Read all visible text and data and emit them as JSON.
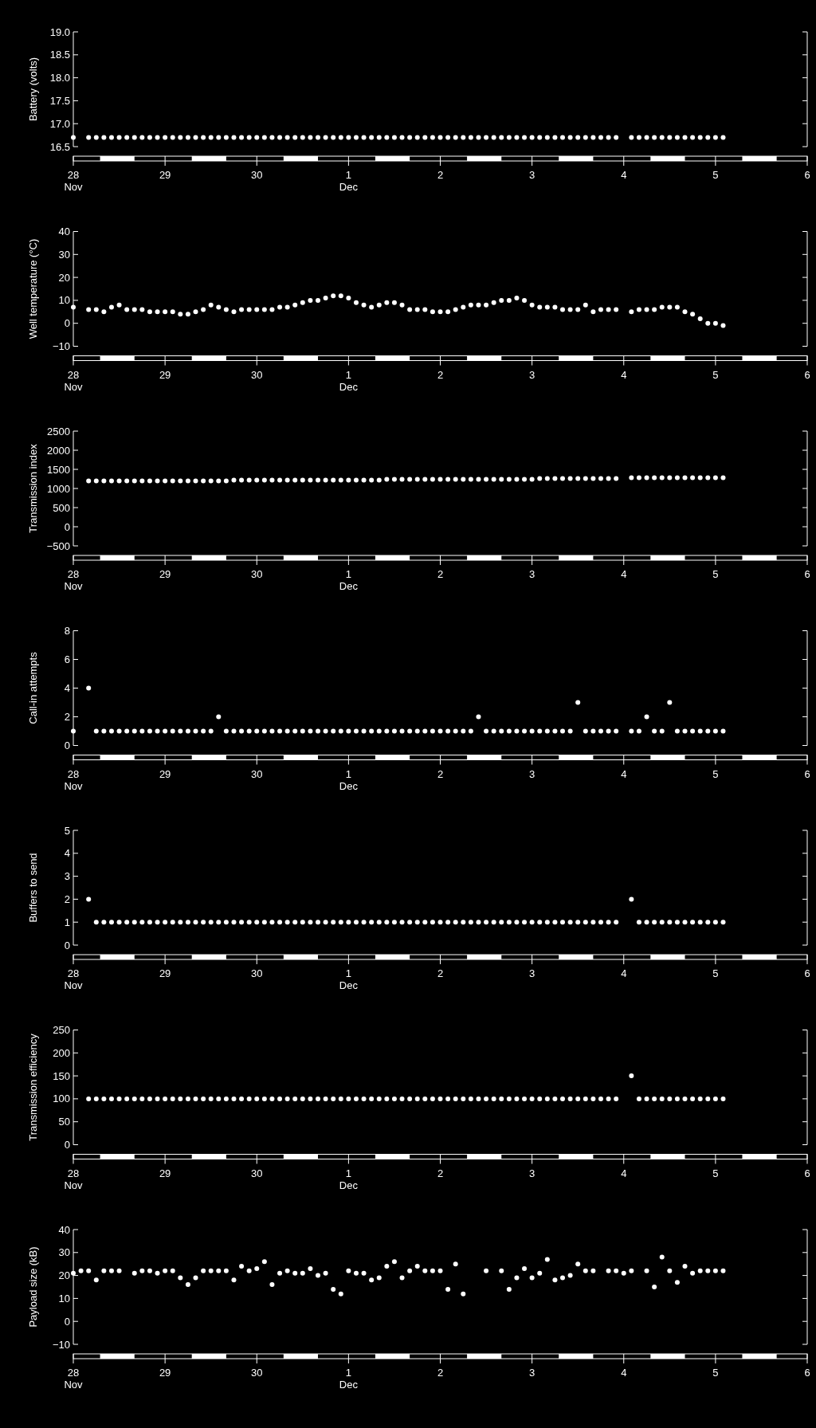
{
  "chart_data": [
    {
      "type": "scatter",
      "ylabel": "Battery (volts)",
      "marker": "circle",
      "xlim": [
        "--11-28",
        "--12-06"
      ],
      "ylim": [
        16.5,
        19.0
      ],
      "xticks": [
        {
          "value": "--11-28",
          "label": "28\nNov"
        },
        {
          "value": "--11-29",
          "label": "29"
        },
        {
          "value": "--11-30",
          "label": "30"
        },
        {
          "value": "--12-01",
          "label": "1\nDec"
        },
        {
          "value": "--12-02",
          "label": "2"
        },
        {
          "value": "--12-03",
          "label": "3"
        },
        {
          "value": "--12-04",
          "label": "4"
        },
        {
          "value": "--12-05",
          "label": "5"
        },
        {
          "value": "--12-06",
          "label": "6"
        }
      ],
      "yticks": [
        16.5,
        {
          "value": 17,
          "label": "17.0"
        },
        17.5,
        {
          "value": 18,
          "label": "18.0"
        },
        18.5,
        {
          "value": 19,
          "label": "19.0"
        }
      ],
      "x": [
        "--11-28T00:00",
        "--11-28T04:00",
        "--11-28T06:00",
        "--11-28T08:00",
        "--11-28T10:00",
        "--11-28T12:00",
        "--11-28T14:00",
        "--11-28T16:00",
        "--11-28T18:00",
        "--11-28T20:00",
        "--11-28T22:00",
        "--11-29T00:00",
        "--11-29T02:00",
        "--11-29T04:00",
        "--11-29T06:00",
        "--11-29T08:00",
        "--11-29T10:00",
        "--11-29T12:00",
        "--11-29T14:00",
        "--11-29T16:00",
        "--11-29T18:00",
        "--11-29T20:00",
        "--11-29T22:00",
        "--11-30T00:00",
        "--11-30T02:00",
        "--11-30T04:00",
        "--11-30T06:00",
        "--11-30T08:00",
        "--11-30T10:00",
        "--11-30T12:00",
        "--11-30T14:00",
        "--11-30T16:00",
        "--11-30T18:00",
        "--11-30T20:00",
        "--11-30T22:00",
        "--12-01T00:00",
        "--12-01T02:00",
        "--12-01T04:00",
        "--12-01T06:00",
        "--12-01T08:00",
        "--12-01T10:00",
        "--12-01T12:00",
        "--12-01T14:00",
        "--12-01T16:00",
        "--12-01T18:00",
        "--12-01T20:00",
        "--12-01T22:00",
        "--12-02T00:00",
        "--12-02T02:00",
        "--12-02T04:00",
        "--12-02T06:00",
        "--12-02T08:00",
        "--12-02T10:00",
        "--12-02T12:00",
        "--12-02T14:00",
        "--12-02T16:00",
        "--12-02T18:00",
        "--12-02T20:00",
        "--12-02T22:00",
        "--12-03T00:00",
        "--12-03T02:00",
        "--12-03T04:00",
        "--12-03T06:00",
        "--12-03T08:00",
        "--12-03T10:00",
        "--12-03T12:00",
        "--12-03T14:00",
        "--12-03T16:00",
        "--12-03T18:00",
        "--12-03T20:00",
        "--12-03T22:00",
        "--12-04T02:00",
        "--12-04T04:00",
        "--12-04T06:00",
        "--12-04T08:00",
        "--12-04T10:00",
        "--12-04T12:00",
        "--12-04T14:00",
        "--12-04T16:00",
        "--12-04T18:00",
        "--12-04T20:00",
        "--12-04T22:00",
        "--12-05T00:00",
        "--12-05T02:00"
      ],
      "series": [
        {
          "color": "#ffffff",
          "values": [
            16.7,
            16.7,
            16.7,
            16.7,
            16.7,
            16.7,
            16.7,
            16.7,
            16.7,
            16.7,
            16.7,
            16.7,
            16.7,
            16.7,
            16.7,
            16.7,
            16.7,
            16.7,
            16.7,
            16.7,
            16.7,
            16.7,
            16.7,
            16.7,
            16.7,
            16.7,
            16.7,
            16.7,
            16.7,
            16.7,
            16.7,
            16.7,
            16.7,
            16.7,
            16.7,
            16.7,
            16.7,
            16.7,
            16.7,
            16.7,
            16.7,
            16.7,
            16.7,
            16.7,
            16.7,
            16.7,
            16.7,
            16.7,
            16.7,
            16.7,
            16.7,
            16.7,
            16.7,
            16.7,
            16.7,
            16.7,
            16.7,
            16.7,
            16.7,
            16.7,
            16.7,
            16.7,
            16.7,
            16.7,
            16.7,
            16.7,
            16.7,
            16.7,
            16.7,
            16.7,
            16.7,
            16.7,
            16.7,
            16.7,
            16.7,
            16.7,
            16.7,
            16.7,
            16.7,
            16.7,
            16.7,
            16.7,
            16.7,
            16.7
          ]
        }
      ]
    },
    {
      "type": "scatter",
      "ylabel": "Well temperature (°C)",
      "marker": "circle",
      "xlim": [
        "--11-28",
        "--12-06"
      ],
      "ylim": [
        -10,
        40
      ],
      "xticks": [
        {
          "value": "--11-28",
          "label": "28\nNov"
        },
        {
          "value": "--11-29",
          "label": "29"
        },
        {
          "value": "--11-30",
          "label": "30"
        },
        {
          "value": "--12-01",
          "label": "1\nDec"
        },
        {
          "value": "--12-02",
          "label": "2"
        },
        {
          "value": "--12-03",
          "label": "3"
        },
        {
          "value": "--12-04",
          "label": "4"
        },
        {
          "value": "--12-05",
          "label": "5"
        },
        {
          "value": "--12-06",
          "label": "6"
        }
      ],
      "yticks": [
        {
          "value": -10,
          "label": "−10"
        },
        0,
        10,
        20,
        30,
        40
      ],
      "x": [
        "--11-28T00:00",
        "--11-28T04:00",
        "--11-28T06:00",
        "--11-28T08:00",
        "--11-28T10:00",
        "--11-28T12:00",
        "--11-28T14:00",
        "--11-28T16:00",
        "--11-28T18:00",
        "--11-28T20:00",
        "--11-28T22:00",
        "--11-29T00:00",
        "--11-29T02:00",
        "--11-29T04:00",
        "--11-29T06:00",
        "--11-29T08:00",
        "--11-29T10:00",
        "--11-29T12:00",
        "--11-29T14:00",
        "--11-29T16:00",
        "--11-29T18:00",
        "--11-29T20:00",
        "--11-29T22:00",
        "--11-30T00:00",
        "--11-30T02:00",
        "--11-30T04:00",
        "--11-30T06:00",
        "--11-30T08:00",
        "--11-30T10:00",
        "--11-30T12:00",
        "--11-30T14:00",
        "--11-30T16:00",
        "--11-30T18:00",
        "--11-30T20:00",
        "--11-30T22:00",
        "--12-01T00:00",
        "--12-01T02:00",
        "--12-01T04:00",
        "--12-01T06:00",
        "--12-01T08:00",
        "--12-01T10:00",
        "--12-01T12:00",
        "--12-01T14:00",
        "--12-01T16:00",
        "--12-01T18:00",
        "--12-01T20:00",
        "--12-01T22:00",
        "--12-02T00:00",
        "--12-02T02:00",
        "--12-02T04:00",
        "--12-02T06:00",
        "--12-02T08:00",
        "--12-02T10:00",
        "--12-02T12:00",
        "--12-02T14:00",
        "--12-02T16:00",
        "--12-02T18:00",
        "--12-02T20:00",
        "--12-02T22:00",
        "--12-03T00:00",
        "--12-03T02:00",
        "--12-03T04:00",
        "--12-03T06:00",
        "--12-03T08:00",
        "--12-03T10:00",
        "--12-03T12:00",
        "--12-03T14:00",
        "--12-03T16:00",
        "--12-03T18:00",
        "--12-03T20:00",
        "--12-03T22:00",
        "--12-04T02:00",
        "--12-04T04:00",
        "--12-04T06:00",
        "--12-04T08:00",
        "--12-04T10:00",
        "--12-04T12:00",
        "--12-04T14:00",
        "--12-04T16:00",
        "--12-04T18:00",
        "--12-04T20:00",
        "--12-04T22:00",
        "--12-05T00:00",
        "--12-05T02:00"
      ],
      "series": [
        {
          "color": "#ffffff",
          "values": [
            7,
            6,
            6,
            5,
            7,
            8,
            6,
            6,
            6,
            5,
            5,
            5,
            5,
            4,
            4,
            5,
            6,
            8,
            7,
            6,
            5,
            6,
            6,
            6,
            6,
            6,
            7,
            7,
            8,
            9,
            10,
            10,
            11,
            12,
            12,
            11,
            9,
            8,
            7,
            8,
            9,
            9,
            8,
            6,
            6,
            6,
            5,
            5,
            5,
            6,
            7,
            8,
            8,
            8,
            9,
            10,
            10,
            11,
            10,
            8,
            7,
            7,
            7,
            6,
            6,
            6,
            8,
            5,
            6,
            6,
            6,
            5,
            6,
            6,
            6,
            7,
            7,
            7,
            5,
            4,
            2,
            0,
            0,
            -1
          ]
        }
      ]
    },
    {
      "type": "scatter",
      "ylabel": "Transmission index",
      "marker": "circle",
      "xlim": [
        "--11-28",
        "--12-06"
      ],
      "ylim": [
        -500,
        2500
      ],
      "xticks": [
        {
          "value": "--11-28",
          "label": "28\nNov"
        },
        {
          "value": "--11-29",
          "label": "29"
        },
        {
          "value": "--11-30",
          "label": "30"
        },
        {
          "value": "--12-01",
          "label": "1\nDec"
        },
        {
          "value": "--12-02",
          "label": "2"
        },
        {
          "value": "--12-03",
          "label": "3"
        },
        {
          "value": "--12-04",
          "label": "4"
        },
        {
          "value": "--12-05",
          "label": "5"
        },
        {
          "value": "--12-06",
          "label": "6"
        }
      ],
      "yticks": [
        {
          "value": -500,
          "label": "−500"
        },
        0,
        500,
        1000,
        1500,
        2000,
        2500
      ],
      "x": [
        "--11-28T04:00",
        "--11-28T06:00",
        "--11-28T08:00",
        "--11-28T10:00",
        "--11-28T12:00",
        "--11-28T14:00",
        "--11-28T16:00",
        "--11-28T18:00",
        "--11-28T20:00",
        "--11-28T22:00",
        "--11-29T00:00",
        "--11-29T02:00",
        "--11-29T04:00",
        "--11-29T06:00",
        "--11-29T08:00",
        "--11-29T10:00",
        "--11-29T12:00",
        "--11-29T14:00",
        "--11-29T16:00",
        "--11-29T18:00",
        "--11-29T20:00",
        "--11-29T22:00",
        "--11-30T00:00",
        "--11-30T02:00",
        "--11-30T04:00",
        "--11-30T06:00",
        "--11-30T08:00",
        "--11-30T10:00",
        "--11-30T12:00",
        "--11-30T14:00",
        "--11-30T16:00",
        "--11-30T18:00",
        "--11-30T20:00",
        "--11-30T22:00",
        "--12-01T00:00",
        "--12-01T02:00",
        "--12-01T04:00",
        "--12-01T06:00",
        "--12-01T08:00",
        "--12-01T10:00",
        "--12-01T12:00",
        "--12-01T14:00",
        "--12-01T16:00",
        "--12-01T18:00",
        "--12-01T20:00",
        "--12-01T22:00",
        "--12-02T00:00",
        "--12-02T02:00",
        "--12-02T04:00",
        "--12-02T06:00",
        "--12-02T08:00",
        "--12-02T10:00",
        "--12-02T12:00",
        "--12-02T14:00",
        "--12-02T16:00",
        "--12-02T18:00",
        "--12-02T20:00",
        "--12-02T22:00",
        "--12-03T00:00",
        "--12-03T02:00",
        "--12-03T04:00",
        "--12-03T06:00",
        "--12-03T08:00",
        "--12-03T10:00",
        "--12-03T12:00",
        "--12-03T14:00",
        "--12-03T16:00",
        "--12-03T18:00",
        "--12-03T20:00",
        "--12-03T22:00",
        "--12-04T02:00",
        "--12-04T04:00",
        "--12-04T06:00",
        "--12-04T08:00",
        "--12-04T10:00",
        "--12-04T12:00",
        "--12-04T14:00",
        "--12-04T16:00",
        "--12-04T18:00",
        "--12-04T20:00",
        "--12-04T22:00",
        "--12-05T00:00",
        "--12-05T02:00"
      ],
      "series": [
        {
          "color": "#ffffff",
          "values": [
            1200,
            1200,
            1200,
            1200,
            1200,
            1200,
            1200,
            1200,
            1200,
            1200,
            1200,
            1200,
            1200,
            1200,
            1200,
            1200,
            1200,
            1200,
            1200,
            1220,
            1220,
            1220,
            1220,
            1220,
            1220,
            1220,
            1220,
            1220,
            1220,
            1220,
            1220,
            1220,
            1220,
            1220,
            1220,
            1220,
            1220,
            1220,
            1220,
            1240,
            1240,
            1240,
            1240,
            1240,
            1240,
            1240,
            1240,
            1240,
            1240,
            1240,
            1240,
            1240,
            1240,
            1240,
            1240,
            1240,
            1240,
            1240,
            1240,
            1260,
            1260,
            1260,
            1260,
            1260,
            1260,
            1260,
            1260,
            1260,
            1260,
            1260,
            1280,
            1280,
            1280,
            1280,
            1280,
            1280,
            1280,
            1280,
            1280,
            1280,
            1280,
            1280,
            1280
          ]
        }
      ]
    },
    {
      "type": "scatter",
      "ylabel": "Call-in attempts",
      "marker": "circle",
      "xlim": [
        "--11-28",
        "--12-06"
      ],
      "ylim": [
        0,
        8
      ],
      "xticks": [
        {
          "value": "--11-28",
          "label": "28\nNov"
        },
        {
          "value": "--11-29",
          "label": "29"
        },
        {
          "value": "--11-30",
          "label": "30"
        },
        {
          "value": "--12-01",
          "label": "1\nDec"
        },
        {
          "value": "--12-02",
          "label": "2"
        },
        {
          "value": "--12-03",
          "label": "3"
        },
        {
          "value": "--12-04",
          "label": "4"
        },
        {
          "value": "--12-05",
          "label": "5"
        },
        {
          "value": "--12-06",
          "label": "6"
        }
      ],
      "yticks": [
        0,
        2,
        4,
        6,
        8
      ],
      "x": [
        "--11-28T00:00",
        "--11-28T04:00",
        "--11-28T06:00",
        "--11-28T08:00",
        "--11-28T10:00",
        "--11-28T12:00",
        "--11-28T14:00",
        "--11-28T16:00",
        "--11-28T18:00",
        "--11-28T20:00",
        "--11-28T22:00",
        "--11-29T00:00",
        "--11-29T02:00",
        "--11-29T04:00",
        "--11-29T06:00",
        "--11-29T08:00",
        "--11-29T10:00",
        "--11-29T12:00",
        "--11-29T14:00",
        "--11-29T16:00",
        "--11-29T18:00",
        "--11-29T20:00",
        "--11-29T22:00",
        "--11-30T00:00",
        "--11-30T02:00",
        "--11-30T04:00",
        "--11-30T06:00",
        "--11-30T08:00",
        "--11-30T10:00",
        "--11-30T12:00",
        "--11-30T14:00",
        "--11-30T16:00",
        "--11-30T18:00",
        "--11-30T20:00",
        "--11-30T22:00",
        "--12-01T00:00",
        "--12-01T02:00",
        "--12-01T04:00",
        "--12-01T06:00",
        "--12-01T08:00",
        "--12-01T10:00",
        "--12-01T12:00",
        "--12-01T14:00",
        "--12-01T16:00",
        "--12-01T18:00",
        "--12-01T20:00",
        "--12-01T22:00",
        "--12-02T00:00",
        "--12-02T02:00",
        "--12-02T04:00",
        "--12-02T06:00",
        "--12-02T08:00",
        "--12-02T10:00",
        "--12-02T12:00",
        "--12-02T14:00",
        "--12-02T16:00",
        "--12-02T18:00",
        "--12-02T20:00",
        "--12-02T22:00",
        "--12-03T00:00",
        "--12-03T02:00",
        "--12-03T04:00",
        "--12-03T06:00",
        "--12-03T08:00",
        "--12-03T10:00",
        "--12-03T12:00",
        "--12-03T14:00",
        "--12-03T16:00",
        "--12-03T18:00",
        "--12-03T20:00",
        "--12-03T22:00",
        "--12-04T02:00",
        "--12-04T04:00",
        "--12-04T06:00",
        "--12-04T08:00",
        "--12-04T10:00",
        "--12-04T12:00",
        "--12-04T14:00",
        "--12-04T16:00",
        "--12-04T18:00",
        "--12-04T20:00",
        "--12-04T22:00",
        "--12-05T00:00",
        "--12-05T02:00"
      ],
      "series": [
        {
          "color": "#ffffff",
          "values": [
            1,
            4,
            1,
            1,
            1,
            1,
            1,
            1,
            1,
            1,
            1,
            1,
            1,
            1,
            1,
            1,
            1,
            1,
            2,
            1,
            1,
            1,
            1,
            1,
            1,
            1,
            1,
            1,
            1,
            1,
            1,
            1,
            1,
            1,
            1,
            1,
            1,
            1,
            1,
            1,
            1,
            1,
            1,
            1,
            1,
            1,
            1,
            1,
            1,
            1,
            1,
            1,
            2,
            1,
            1,
            1,
            1,
            1,
            1,
            1,
            1,
            1,
            1,
            1,
            1,
            3,
            1,
            1,
            1,
            1,
            1,
            1,
            1,
            2,
            1,
            1,
            3,
            1,
            1,
            1,
            1,
            1,
            1,
            1
          ]
        }
      ]
    },
    {
      "type": "scatter",
      "ylabel": "Buffers to send",
      "marker": "circle",
      "xlim": [
        "--11-28",
        "--12-06"
      ],
      "ylim": [
        0,
        5
      ],
      "xticks": [
        {
          "value": "--11-28",
          "label": "28\nNov"
        },
        {
          "value": "--11-29",
          "label": "29"
        },
        {
          "value": "--11-30",
          "label": "30"
        },
        {
          "value": "--12-01",
          "label": "1\nDec"
        },
        {
          "value": "--12-02",
          "label": "2"
        },
        {
          "value": "--12-03",
          "label": "3"
        },
        {
          "value": "--12-04",
          "label": "4"
        },
        {
          "value": "--12-05",
          "label": "5"
        },
        {
          "value": "--12-06",
          "label": "6"
        }
      ],
      "yticks": [
        0,
        1,
        2,
        3,
        4,
        5
      ],
      "x": [
        "--11-28T04:00",
        "--11-28T06:00",
        "--11-28T08:00",
        "--11-28T10:00",
        "--11-28T12:00",
        "--11-28T14:00",
        "--11-28T16:00",
        "--11-28T18:00",
        "--11-28T20:00",
        "--11-28T22:00",
        "--11-29T00:00",
        "--11-29T02:00",
        "--11-29T04:00",
        "--11-29T06:00",
        "--11-29T08:00",
        "--11-29T10:00",
        "--11-29T12:00",
        "--11-29T14:00",
        "--11-29T16:00",
        "--11-29T18:00",
        "--11-29T20:00",
        "--11-29T22:00",
        "--11-30T00:00",
        "--11-30T02:00",
        "--11-30T04:00",
        "--11-30T06:00",
        "--11-30T08:00",
        "--11-30T10:00",
        "--11-30T12:00",
        "--11-30T14:00",
        "--11-30T16:00",
        "--11-30T18:00",
        "--11-30T20:00",
        "--11-30T22:00",
        "--12-01T00:00",
        "--12-01T02:00",
        "--12-01T04:00",
        "--12-01T06:00",
        "--12-01T08:00",
        "--12-01T10:00",
        "--12-01T12:00",
        "--12-01T14:00",
        "--12-01T16:00",
        "--12-01T18:00",
        "--12-01T20:00",
        "--12-01T22:00",
        "--12-02T00:00",
        "--12-02T02:00",
        "--12-02T04:00",
        "--12-02T06:00",
        "--12-02T08:00",
        "--12-02T10:00",
        "--12-02T12:00",
        "--12-02T14:00",
        "--12-02T16:00",
        "--12-02T18:00",
        "--12-02T20:00",
        "--12-02T22:00",
        "--12-03T00:00",
        "--12-03T02:00",
        "--12-03T04:00",
        "--12-03T06:00",
        "--12-03T08:00",
        "--12-03T10:00",
        "--12-03T12:00",
        "--12-03T14:00",
        "--12-03T16:00",
        "--12-03T18:00",
        "--12-03T20:00",
        "--12-03T22:00",
        "--12-04T02:00",
        "--12-04T04:00",
        "--12-04T06:00",
        "--12-04T08:00",
        "--12-04T10:00",
        "--12-04T12:00",
        "--12-04T14:00",
        "--12-04T16:00",
        "--12-04T18:00",
        "--12-04T20:00",
        "--12-04T22:00",
        "--12-05T00:00",
        "--12-05T02:00"
      ],
      "series": [
        {
          "color": "#ffffff",
          "values": [
            2,
            1,
            1,
            1,
            1,
            1,
            1,
            1,
            1,
            1,
            1,
            1,
            1,
            1,
            1,
            1,
            1,
            1,
            1,
            1,
            1,
            1,
            1,
            1,
            1,
            1,
            1,
            1,
            1,
            1,
            1,
            1,
            1,
            1,
            1,
            1,
            1,
            1,
            1,
            1,
            1,
            1,
            1,
            1,
            1,
            1,
            1,
            1,
            1,
            1,
            1,
            1,
            1,
            1,
            1,
            1,
            1,
            1,
            1,
            1,
            1,
            1,
            1,
            1,
            1,
            1,
            1,
            1,
            1,
            1,
            2,
            1,
            1,
            1,
            1,
            1,
            1,
            1,
            1,
            1,
            1,
            1,
            1
          ]
        }
      ]
    },
    {
      "type": "scatter",
      "ylabel": "Transmission efficiency",
      "marker": "circle",
      "xlim": [
        "--11-28",
        "--12-06"
      ],
      "ylim": [
        0,
        250
      ],
      "xticks": [
        {
          "value": "--11-28",
          "label": "28\nNov"
        },
        {
          "value": "--11-29",
          "label": "29"
        },
        {
          "value": "--11-30",
          "label": "30"
        },
        {
          "value": "--12-01",
          "label": "1\nDec"
        },
        {
          "value": "--12-02",
          "label": "2"
        },
        {
          "value": "--12-03",
          "label": "3"
        },
        {
          "value": "--12-04",
          "label": "4"
        },
        {
          "value": "--12-05",
          "label": "5"
        },
        {
          "value": "--12-06",
          "label": "6"
        }
      ],
      "yticks": [
        0,
        50,
        100,
        150,
        200,
        250
      ],
      "x": [
        "--11-28T04:00",
        "--11-28T06:00",
        "--11-28T08:00",
        "--11-28T10:00",
        "--11-28T12:00",
        "--11-28T14:00",
        "--11-28T16:00",
        "--11-28T18:00",
        "--11-28T20:00",
        "--11-28T22:00",
        "--11-29T00:00",
        "--11-29T02:00",
        "--11-29T04:00",
        "--11-29T06:00",
        "--11-29T08:00",
        "--11-29T10:00",
        "--11-29T12:00",
        "--11-29T14:00",
        "--11-29T16:00",
        "--11-29T18:00",
        "--11-29T20:00",
        "--11-29T22:00",
        "--11-30T00:00",
        "--11-30T02:00",
        "--11-30T04:00",
        "--11-30T06:00",
        "--11-30T08:00",
        "--11-30T10:00",
        "--11-30T12:00",
        "--11-30T14:00",
        "--11-30T16:00",
        "--11-30T18:00",
        "--11-30T20:00",
        "--11-30T22:00",
        "--12-01T00:00",
        "--12-01T02:00",
        "--12-01T04:00",
        "--12-01T06:00",
        "--12-01T08:00",
        "--12-01T10:00",
        "--12-01T12:00",
        "--12-01T14:00",
        "--12-01T16:00",
        "--12-01T18:00",
        "--12-01T20:00",
        "--12-01T22:00",
        "--12-02T00:00",
        "--12-02T02:00",
        "--12-02T04:00",
        "--12-02T06:00",
        "--12-02T08:00",
        "--12-02T10:00",
        "--12-02T12:00",
        "--12-02T14:00",
        "--12-02T16:00",
        "--12-02T18:00",
        "--12-02T20:00",
        "--12-02T22:00",
        "--12-03T00:00",
        "--12-03T02:00",
        "--12-03T04:00",
        "--12-03T06:00",
        "--12-03T08:00",
        "--12-03T10:00",
        "--12-03T12:00",
        "--12-03T14:00",
        "--12-03T16:00",
        "--12-03T18:00",
        "--12-03T20:00",
        "--12-03T22:00",
        "--12-04T02:00",
        "--12-04T04:00",
        "--12-04T06:00",
        "--12-04T08:00",
        "--12-04T10:00",
        "--12-04T12:00",
        "--12-04T14:00",
        "--12-04T16:00",
        "--12-04T18:00",
        "--12-04T20:00",
        "--12-04T22:00",
        "--12-05T00:00",
        "--12-05T02:00"
      ],
      "series": [
        {
          "color": "#ffffff",
          "values": [
            100,
            100,
            100,
            100,
            100,
            100,
            100,
            100,
            100,
            100,
            100,
            100,
            100,
            100,
            100,
            100,
            100,
            100,
            100,
            100,
            100,
            100,
            100,
            100,
            100,
            100,
            100,
            100,
            100,
            100,
            100,
            100,
            100,
            100,
            100,
            100,
            100,
            100,
            100,
            100,
            100,
            100,
            100,
            100,
            100,
            100,
            100,
            100,
            100,
            100,
            100,
            100,
            100,
            100,
            100,
            100,
            100,
            100,
            100,
            100,
            100,
            100,
            100,
            100,
            100,
            100,
            100,
            100,
            100,
            100,
            150,
            100,
            100,
            100,
            100,
            100,
            100,
            100,
            100,
            100,
            100,
            100,
            100
          ]
        }
      ]
    },
    {
      "type": "scatter",
      "ylabel": "Payload size (kB)",
      "marker": "circle",
      "xlim": [
        "--11-28",
        "--12-06"
      ],
      "ylim": [
        -10,
        40
      ],
      "xticks": [
        {
          "value": "--11-28",
          "label": "28\nNov"
        },
        {
          "value": "--11-29",
          "label": "29"
        },
        {
          "value": "--11-30",
          "label": "30"
        },
        {
          "value": "--12-01",
          "label": "1\nDec"
        },
        {
          "value": "--12-02",
          "label": "2"
        },
        {
          "value": "--12-03",
          "label": "3"
        },
        {
          "value": "--12-04",
          "label": "4"
        },
        {
          "value": "--12-05",
          "label": "5"
        },
        {
          "value": "--12-06",
          "label": "6"
        }
      ],
      "yticks": [
        {
          "value": -10,
          "label": "−10"
        },
        0,
        10,
        20,
        30,
        40
      ],
      "x": [
        "--11-28T00:00",
        "--11-28T02:00",
        "--11-28T04:00",
        "--11-28T06:00",
        "--11-28T08:00",
        "--11-28T10:00",
        "--11-28T12:00",
        "--11-28T16:00",
        "--11-28T18:00",
        "--11-28T20:00",
        "--11-28T22:00",
        "--11-29T00:00",
        "--11-29T02:00",
        "--11-29T04:00",
        "--11-29T06:00",
        "--11-29T08:00",
        "--11-29T10:00",
        "--11-29T12:00",
        "--11-29T14:00",
        "--11-29T16:00",
        "--11-29T18:00",
        "--11-29T20:00",
        "--11-29T22:00",
        "--11-30T00:00",
        "--11-30T02:00",
        "--11-30T04:00",
        "--11-30T06:00",
        "--11-30T08:00",
        "--11-30T10:00",
        "--11-30T12:00",
        "--11-30T14:00",
        "--11-30T16:00",
        "--11-30T18:00",
        "--11-30T20:00",
        "--11-30T22:00",
        "--12-01T00:00",
        "--12-01T02:00",
        "--12-01T04:00",
        "--12-01T06:00",
        "--12-01T08:00",
        "--12-01T10:00",
        "--12-01T12:00",
        "--12-01T14:00",
        "--12-01T16:00",
        "--12-01T18:00",
        "--12-01T20:00",
        "--12-01T22:00",
        "--12-02T00:00",
        "--12-02T02:00",
        "--12-02T04:00",
        "--12-02T06:00",
        "--12-02T12:00",
        "--12-02T16:00",
        "--12-02T18:00",
        "--12-02T20:00",
        "--12-02T22:00",
        "--12-03T00:00",
        "--12-03T02:00",
        "--12-03T04:00",
        "--12-03T06:00",
        "--12-03T08:00",
        "--12-03T10:00",
        "--12-03T12:00",
        "--12-03T14:00",
        "--12-03T16:00",
        "--12-03T20:00",
        "--12-03T22:00",
        "--12-04T00:00",
        "--12-04T02:00",
        "--12-04T06:00",
        "--12-04T08:00",
        "--12-04T10:00",
        "--12-04T12:00",
        "--12-04T14:00",
        "--12-04T16:00",
        "--12-04T18:00",
        "--12-04T20:00",
        "--12-04T22:00",
        "--12-05T00:00",
        "--12-05T02:00"
      ],
      "series": [
        {
          "color": "#ffffff",
          "values": [
            21,
            22,
            22,
            18,
            22,
            22,
            22,
            21,
            22,
            22,
            21,
            22,
            22,
            19,
            16,
            19,
            22,
            22,
            22,
            22,
            18,
            24,
            22,
            23,
            26,
            16,
            21,
            22,
            21,
            21,
            23,
            20,
            21,
            14,
            12,
            22,
            21,
            21,
            18,
            19,
            24,
            26,
            19,
            22,
            24,
            22,
            22,
            22,
            14,
            25,
            12,
            22,
            22,
            14,
            19,
            23,
            19,
            21,
            27,
            18,
            19,
            20,
            25,
            22,
            22,
            22,
            22,
            21,
            22,
            22,
            15,
            28,
            22,
            17,
            24,
            21,
            22,
            22,
            22,
            22
          ]
        }
      ]
    }
  ]
}
